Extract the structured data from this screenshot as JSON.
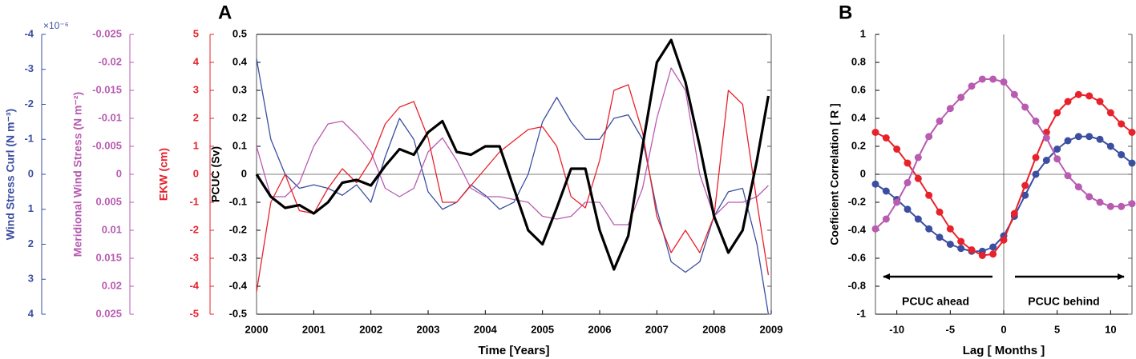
{
  "chart_data": [
    {
      "type": "line",
      "panel": "A",
      "xlabel": "Time [Years]",
      "xlim": [
        2000,
        2009
      ],
      "xticks": [
        2000,
        2001,
        2002,
        2003,
        2004,
        2005,
        2006,
        2007,
        2008,
        2009
      ],
      "ylabel": "PCUC (Sv)",
      "ylim": [
        -0.5,
        0.5
      ],
      "yticks": [
        0.5,
        0.4,
        0.3,
        0.2,
        0.1,
        0,
        -0.1,
        -0.2,
        -0.3,
        -0.4,
        -0.5
      ],
      "y2label": "EKW (cm)",
      "y2lim": [
        -5,
        5
      ],
      "y2ticks": [
        5,
        4,
        3,
        2,
        1,
        0,
        -1,
        -2,
        -3,
        -4,
        -5
      ],
      "y3label": "Meridional Wind Stress (N m⁻²)",
      "y3lim": [
        0.025,
        -0.025
      ],
      "y3ticks": [
        -0.025,
        -0.02,
        -0.015,
        -0.01,
        -0.005,
        0,
        0.005,
        0.01,
        0.015,
        0.02,
        0.025
      ],
      "y4label": "Wind Stress Curl (N m⁻³)",
      "y4multiplier": "×10⁻⁶",
      "y4lim": [
        4,
        -4
      ],
      "y4ticks": [
        -4,
        -3,
        -2,
        -1,
        0,
        1,
        2,
        3,
        4
      ],
      "x": [
        2000,
        2000.25,
        2000.5,
        2000.75,
        2001,
        2001.25,
        2001.5,
        2001.75,
        2002,
        2002.25,
        2002.5,
        2002.75,
        2003,
        2003.25,
        2003.5,
        2003.75,
        2004,
        2004.25,
        2004.5,
        2004.75,
        2005,
        2005.25,
        2005.5,
        2005.75,
        2006,
        2006.25,
        2006.5,
        2006.75,
        2007,
        2007.25,
        2007.5,
        2007.75,
        2008,
        2008.25,
        2008.5,
        2008.75,
        2008.95
      ],
      "series": [
        {
          "axis": "y4",
          "color": "#3b4ea0",
          "values": [
            -3.3,
            -1.0,
            0,
            0.4,
            0.3,
            0.4,
            0.6,
            0.3,
            0.8,
            -0.5,
            -1.6,
            -1.0,
            0.5,
            1.0,
            0.8,
            0.3,
            0.6,
            1.0,
            0.8,
            0,
            -1.5,
            -2.2,
            -1.5,
            -1.0,
            -1.0,
            -1.6,
            -1.7,
            -1.0,
            1.0,
            2.5,
            2.8,
            2.5,
            1.2,
            0.5,
            0.4,
            2.0,
            4.0
          ]
        },
        {
          "axis": "y3",
          "color": "#b85bb1",
          "values": [
            -0.005,
            0.004,
            0.004,
            0.0015,
            -0.005,
            -0.009,
            -0.0095,
            -0.007,
            -0.004,
            0.0025,
            0.004,
            0.0025,
            -0.004,
            -0.0065,
            -0.0025,
            0.0025,
            0.004,
            0.004,
            0.0045,
            0.005,
            0.0075,
            0.008,
            0.0075,
            0.005,
            0.005,
            0.009,
            0.009,
            0.0025,
            -0.01,
            -0.019,
            -0.015,
            0,
            0.0075,
            0.005,
            0.005,
            0.004,
            0.002
          ]
        },
        {
          "axis": "y2",
          "color": "#e8222b",
          "values": [
            -4.2,
            -1.0,
            0.0,
            -1.3,
            -1.4,
            -0.5,
            0.2,
            -0.3,
            0.5,
            1.8,
            2.4,
            2.6,
            1.3,
            -1.0,
            -1.0,
            -0.4,
            0.2,
            0.8,
            1.2,
            1.6,
            1.7,
            1.0,
            -0.8,
            -1.2,
            0.5,
            3.0,
            3.2,
            1.5,
            -1.5,
            -2.8,
            -2.0,
            -2.8,
            -1.5,
            3.0,
            2.5,
            -1.0,
            -3.6
          ]
        },
        {
          "axis": "y",
          "color": "#000000",
          "values": [
            0.0,
            -0.08,
            -0.12,
            -0.11,
            -0.14,
            -0.1,
            -0.03,
            -0.02,
            -0.04,
            0.03,
            0.09,
            0.07,
            0.15,
            0.19,
            0.08,
            0.07,
            0.1,
            0.1,
            -0.05,
            -0.2,
            -0.25,
            -0.12,
            0.02,
            0.02,
            -0.2,
            -0.34,
            -0.22,
            0.1,
            0.4,
            0.48,
            0.33,
            0.1,
            -0.15,
            -0.28,
            -0.2,
            0.05,
            0.28
          ]
        }
      ]
    },
    {
      "type": "line",
      "panel": "B",
      "markers": true,
      "xlabel": "Lag [ Months ]",
      "ylabel": "Coeficient Correlation [ R ]",
      "xlim": [
        -12,
        12
      ],
      "xticks": [
        -10,
        -5,
        0,
        5,
        10
      ],
      "ylim": [
        -1,
        1
      ],
      "yticks": [
        1,
        0.8,
        0.6,
        0.4,
        0.2,
        0,
        -0.2,
        -0.4,
        -0.6,
        -0.8,
        -1
      ],
      "annotations": [
        "PCUC ahead",
        "PCUC behind"
      ],
      "x": [
        -12,
        -11,
        -10,
        -9,
        -8,
        -7,
        -6,
        -5,
        -4,
        -3,
        -2,
        -1,
        0,
        1,
        2,
        3,
        4,
        5,
        6,
        7,
        8,
        9,
        10,
        11,
        12
      ],
      "series": [
        {
          "color": "#3b4ea0",
          "values": [
            -0.07,
            -0.12,
            -0.18,
            -0.25,
            -0.32,
            -0.39,
            -0.45,
            -0.5,
            -0.53,
            -0.55,
            -0.55,
            -0.52,
            -0.44,
            -0.3,
            -0.15,
            0.0,
            0.1,
            0.18,
            0.24,
            0.27,
            0.27,
            0.25,
            0.2,
            0.14,
            0.08
          ]
        },
        {
          "color": "#e8222b",
          "values": [
            0.3,
            0.26,
            0.18,
            0.08,
            -0.03,
            -0.15,
            -0.27,
            -0.39,
            -0.48,
            -0.54,
            -0.58,
            -0.57,
            -0.47,
            -0.28,
            -0.08,
            0.12,
            0.3,
            0.44,
            0.52,
            0.57,
            0.56,
            0.52,
            0.44,
            0.36,
            0.3
          ]
        },
        {
          "color": "#b85bb1",
          "values": [
            -0.39,
            -0.32,
            -0.2,
            -0.06,
            0.12,
            0.27,
            0.38,
            0.47,
            0.55,
            0.63,
            0.68,
            0.68,
            0.66,
            0.57,
            0.48,
            0.38,
            0.26,
            0.11,
            -0.01,
            -0.09,
            -0.16,
            -0.2,
            -0.23,
            -0.23,
            -0.21
          ]
        }
      ]
    }
  ]
}
